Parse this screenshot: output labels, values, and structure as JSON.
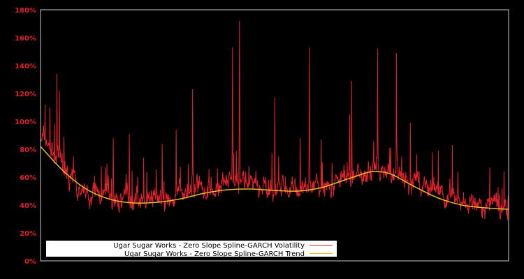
{
  "chart_data": {
    "type": "line",
    "title": "",
    "xlabel": "",
    "ylabel": "",
    "ylim": [
      0,
      180
    ],
    "y_ticks": [
      "0%",
      "20%",
      "40%",
      "60%",
      "80%",
      "100%",
      "120%",
      "140%",
      "160%",
      "180%"
    ],
    "grid": false,
    "legend_position": "lower left",
    "background": "#000000",
    "axis_color": "#c8c8c8",
    "tick_label_color": "#e0202a",
    "series": [
      {
        "name": "Ugar Sugar Works - Zero Slope Spline-GARCH Volatility",
        "color": "#e0202a",
        "style": "noisy",
        "baseline_pct": [
          95,
          82,
          70,
          60,
          52,
          47,
          44,
          42,
          41,
          41,
          40,
          40,
          41,
          42,
          43,
          45,
          47,
          49,
          51,
          53,
          55,
          56,
          55,
          53,
          51,
          50,
          49,
          49,
          50,
          51,
          53,
          55,
          58,
          61,
          63,
          64,
          63,
          61,
          58,
          54,
          50,
          47,
          45,
          43,
          41,
          40,
          39,
          38,
          37,
          36
        ],
        "spikes": [
          {
            "x": 0.01,
            "pct": 112
          },
          {
            "x": 0.02,
            "pct": 110
          },
          {
            "x": 0.035,
            "pct": 134
          },
          {
            "x": 0.04,
            "pct": 122
          },
          {
            "x": 0.07,
            "pct": 75
          },
          {
            "x": 0.13,
            "pct": 68
          },
          {
            "x": 0.155,
            "pct": 88
          },
          {
            "x": 0.19,
            "pct": 91
          },
          {
            "x": 0.22,
            "pct": 74
          },
          {
            "x": 0.26,
            "pct": 84
          },
          {
            "x": 0.29,
            "pct": 94
          },
          {
            "x": 0.325,
            "pct": 123
          },
          {
            "x": 0.36,
            "pct": 66
          },
          {
            "x": 0.41,
            "pct": 153
          },
          {
            "x": 0.425,
            "pct": 172
          },
          {
            "x": 0.445,
            "pct": 68
          },
          {
            "x": 0.5,
            "pct": 117
          },
          {
            "x": 0.555,
            "pct": 88
          },
          {
            "x": 0.574,
            "pct": 153
          },
          {
            "x": 0.6,
            "pct": 87
          },
          {
            "x": 0.66,
            "pct": 105
          },
          {
            "x": 0.665,
            "pct": 129
          },
          {
            "x": 0.72,
            "pct": 152
          },
          {
            "x": 0.76,
            "pct": 149
          },
          {
            "x": 0.79,
            "pct": 99
          },
          {
            "x": 0.85,
            "pct": 79
          },
          {
            "x": 0.88,
            "pct": 83
          },
          {
            "x": 0.96,
            "pct": 67
          },
          {
            "x": 0.99,
            "pct": 64
          }
        ]
      },
      {
        "name": "Ugar Sugar Works - Zero Slope Spline-GARCH Trend",
        "color": "#e8b830",
        "style": "smooth",
        "x_frac": [
          0.0,
          0.05,
          0.1,
          0.15,
          0.2,
          0.25,
          0.3,
          0.35,
          0.4,
          0.45,
          0.5,
          0.55,
          0.6,
          0.65,
          0.7,
          0.72,
          0.75,
          0.8,
          0.85,
          0.9,
          0.95,
          1.0
        ],
        "values_pct": [
          82,
          64,
          51,
          44,
          41.5,
          42,
          44.5,
          48.5,
          51,
          51.5,
          50.5,
          50,
          52.5,
          58,
          63.5,
          64,
          62,
          53,
          45,
          40,
          38,
          37
        ]
      }
    ]
  },
  "legend": {
    "items": [
      {
        "label": "Ugar Sugar Works - Zero Slope Spline-GARCH Volatility",
        "color": "#e0202a"
      },
      {
        "label": "Ugar Sugar Works - Zero Slope Spline-GARCH Trend",
        "color": "#e8b830"
      }
    ]
  }
}
